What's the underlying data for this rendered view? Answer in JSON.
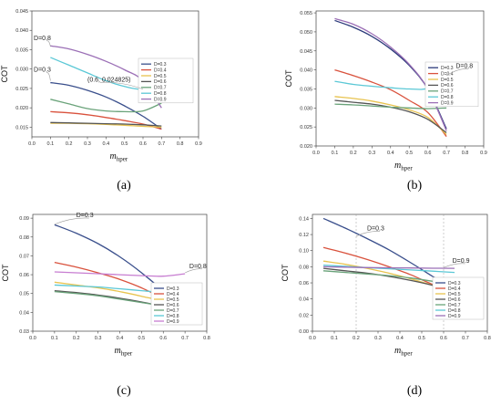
{
  "chart_data": [
    {
      "type": "line",
      "panel_label": "(a)",
      "xlabel": "m",
      "xlabel_sub": "hper",
      "ylabel": "COT",
      "xlim": [
        0.0,
        0.9
      ],
      "ylim": [
        0.0125,
        0.045
      ],
      "xticks": [
        "0.0",
        "0.1",
        "0.2",
        "0.3",
        "0.4",
        "0.5",
        "0.6",
        "0.7",
        "0.8",
        "0.9"
      ],
      "yticks": [
        {
          "v": 0.015,
          "t": "0.015"
        },
        {
          "v": 0.02,
          "t": "0.020"
        },
        {
          "v": 0.025,
          "t": "0.025"
        },
        {
          "v": 0.03,
          "t": "0.030"
        },
        {
          "v": 0.035,
          "t": "0.035"
        },
        {
          "v": 0.04,
          "t": "0.040"
        },
        {
          "v": 0.045,
          "t": "0.045"
        }
      ],
      "legend_position": "right-middle",
      "series": [
        {
          "name": "D=0.3",
          "color": "#3a4f8c",
          "x": [
            0.1,
            0.2,
            0.3,
            0.4,
            0.5,
            0.6,
            0.7
          ],
          "y": [
            0.0265,
            0.0258,
            0.0245,
            0.0228,
            0.0205,
            0.0178,
            0.0145
          ]
        },
        {
          "name": "D=0.4",
          "color": "#d9523d",
          "x": [
            0.1,
            0.2,
            0.3,
            0.4,
            0.5,
            0.6,
            0.7
          ],
          "y": [
            0.019,
            0.0187,
            0.0182,
            0.0175,
            0.0167,
            0.0158,
            0.0145
          ]
        },
        {
          "name": "D=0.5",
          "color": "#e8c34f",
          "x": [
            0.1,
            0.2,
            0.3,
            0.4,
            0.5,
            0.6,
            0.7
          ],
          "y": [
            0.016,
            0.016,
            0.0159,
            0.0157,
            0.0155,
            0.0152,
            0.015
          ]
        },
        {
          "name": "D=0.6",
          "color": "#555555",
          "x": [
            0.1,
            0.2,
            0.3,
            0.4,
            0.5,
            0.6,
            0.7
          ],
          "y": [
            0.0162,
            0.0161,
            0.016,
            0.0159,
            0.0158,
            0.0156,
            0.0153
          ]
        },
        {
          "name": "D=0.7",
          "color": "#6aa37a",
          "x": [
            0.1,
            0.2,
            0.3,
            0.4,
            0.5,
            0.6,
            0.7
          ],
          "y": [
            0.0222,
            0.021,
            0.0198,
            0.0192,
            0.019,
            0.0192,
            0.0212
          ]
        },
        {
          "name": "D=0.8",
          "color": "#5bc8d6",
          "x": [
            0.1,
            0.2,
            0.3,
            0.4,
            0.5,
            0.6,
            0.7
          ],
          "y": [
            0.033,
            0.031,
            0.029,
            0.027,
            0.0255,
            0.0248,
            0.0265
          ]
        },
        {
          "name": "D=0.9",
          "color": "#9b6fb6",
          "x": [
            0.1,
            0.2,
            0.3,
            0.4,
            0.5,
            0.6,
            0.7
          ],
          "y": [
            0.036,
            0.0352,
            0.0338,
            0.032,
            0.0298,
            0.027,
            0.02
          ]
        }
      ],
      "annotations": [
        {
          "text": "D=0.8",
          "x": 0.01,
          "y": 0.0375,
          "to_x": 0.1,
          "to_y": 0.0358
        },
        {
          "text": "D=0.3",
          "x": 0.01,
          "y": 0.0293,
          "to_x": 0.1,
          "to_y": 0.027
        },
        {
          "text": "(0.6, 0.024825)",
          "x": 0.3,
          "y": 0.0268,
          "to_x": 0.6,
          "to_y": 0.0248
        }
      ]
    },
    {
      "type": "line",
      "panel_label": "(b)",
      "xlabel": "m",
      "xlabel_sub": "hper",
      "ylabel": "COT",
      "xlim": [
        0.0,
        0.9
      ],
      "ylim": [
        0.02,
        0.0555
      ],
      "xticks": [
        "0.0",
        "0.1",
        "0.2",
        "0.3",
        "0.4",
        "0.5",
        "0.6",
        "0.7",
        "0.8",
        "0.9"
      ],
      "yticks": [
        {
          "v": 0.02,
          "t": "0.020"
        },
        {
          "v": 0.025,
          "t": "0.025"
        },
        {
          "v": 0.03,
          "t": "0.030"
        },
        {
          "v": 0.035,
          "t": "0.035"
        },
        {
          "v": 0.04,
          "t": "0.040"
        },
        {
          "v": 0.045,
          "t": "0.045"
        },
        {
          "v": 0.05,
          "t": "0.050"
        },
        {
          "v": 0.055,
          "t": "0.055"
        }
      ],
      "legend_position": "right-middle",
      "series": [
        {
          "name": "D=0.3",
          "color": "#2b3a7a",
          "x": [
            0.1,
            0.2,
            0.3,
            0.4,
            0.5,
            0.6,
            0.7
          ],
          "y": [
            0.053,
            0.0512,
            0.0488,
            0.0455,
            0.0412,
            0.035,
            0.0245
          ]
        },
        {
          "name": "D=0.4",
          "color": "#d9523d",
          "x": [
            0.1,
            0.2,
            0.3,
            0.4,
            0.5,
            0.6,
            0.7
          ],
          "y": [
            0.04,
            0.0385,
            0.0368,
            0.0348,
            0.032,
            0.0288,
            0.0225
          ]
        },
        {
          "name": "D=0.5",
          "color": "#e8c34f",
          "x": [
            0.1,
            0.2,
            0.3,
            0.4,
            0.5,
            0.6,
            0.7
          ],
          "y": [
            0.033,
            0.0325,
            0.0318,
            0.0308,
            0.0295,
            0.0275,
            0.023
          ]
        },
        {
          "name": "D=0.6",
          "color": "#555555",
          "x": [
            0.1,
            0.2,
            0.3,
            0.4,
            0.5,
            0.6,
            0.7
          ],
          "y": [
            0.032,
            0.0315,
            0.031,
            0.0302,
            0.029,
            0.027,
            0.0235
          ]
        },
        {
          "name": "D=0.7",
          "color": "#6aa37a",
          "x": [
            0.1,
            0.2,
            0.3,
            0.4,
            0.5,
            0.6,
            0.7
          ],
          "y": [
            0.031,
            0.0308,
            0.0305,
            0.0302,
            0.03,
            0.0298,
            0.03
          ]
        },
        {
          "name": "D=0.8",
          "color": "#5bc8d6",
          "x": [
            0.1,
            0.2,
            0.3,
            0.4,
            0.5,
            0.6,
            0.7
          ],
          "y": [
            0.037,
            0.0362,
            0.0357,
            0.0353,
            0.035,
            0.0352,
            0.0385
          ]
        },
        {
          "name": "D=0.9",
          "color": "#9b6fb6",
          "x": [
            0.1,
            0.2,
            0.3,
            0.4,
            0.5,
            0.6,
            0.7
          ],
          "y": [
            0.0535,
            0.052,
            0.0495,
            0.046,
            0.0415,
            0.035,
            0.024
          ]
        }
      ],
      "annotations": [
        {
          "text": "D=0.8",
          "x": 0.75,
          "y": 0.0405,
          "to_x": 0.7,
          "to_y": 0.0385
        }
      ]
    },
    {
      "type": "line",
      "panel_label": "(c)",
      "xlabel": "m",
      "xlabel_sub": "hper",
      "ylabel": "COT",
      "xlim": [
        0.0,
        0.8
      ],
      "ylim": [
        0.03,
        0.092
      ],
      "xticks": [
        "0.0",
        "0.1",
        "0.2",
        "0.3",
        "0.4",
        "0.5",
        "0.6",
        "0.7",
        "0.8"
      ],
      "yticks": [
        {
          "v": 0.03,
          "t": "0.03"
        },
        {
          "v": 0.04,
          "t": "0.04"
        },
        {
          "v": 0.05,
          "t": "0.05"
        },
        {
          "v": 0.06,
          "t": "0.06"
        },
        {
          "v": 0.07,
          "t": "0.07"
        },
        {
          "v": 0.08,
          "t": "0.08"
        },
        {
          "v": 0.09,
          "t": "0.09"
        }
      ],
      "legend_position": "bottom-right",
      "series": [
        {
          "name": "D=0.3",
          "color": "#3a4f8c",
          "x": [
            0.1,
            0.2,
            0.3,
            0.4,
            0.5,
            0.6,
            0.7
          ],
          "y": [
            0.0865,
            0.082,
            0.0765,
            0.0695,
            0.061,
            0.051,
            0.037
          ]
        },
        {
          "name": "D=0.4",
          "color": "#d9523d",
          "x": [
            0.1,
            0.2,
            0.3,
            0.4,
            0.5,
            0.6,
            0.7
          ],
          "y": [
            0.0665,
            0.064,
            0.061,
            0.0575,
            0.053,
            0.047,
            0.038
          ]
        },
        {
          "name": "D=0.5",
          "color": "#e8c34f",
          "x": [
            0.1,
            0.2,
            0.3,
            0.4,
            0.5,
            0.6,
            0.7
          ],
          "y": [
            0.056,
            0.0545,
            0.053,
            0.051,
            0.0485,
            0.045,
            0.034
          ]
        },
        {
          "name": "D=0.6",
          "color": "#555555",
          "x": [
            0.1,
            0.2,
            0.3,
            0.4,
            0.5,
            0.6,
            0.7
          ],
          "y": [
            0.0515,
            0.0505,
            0.0492,
            0.0475,
            0.0455,
            0.043,
            0.039
          ]
        },
        {
          "name": "D=0.7",
          "color": "#6aa37a",
          "x": [
            0.1,
            0.2,
            0.3,
            0.4,
            0.5,
            0.6,
            0.7
          ],
          "y": [
            0.051,
            0.05,
            0.0488,
            0.047,
            0.0452,
            0.0435,
            0.0425
          ]
        },
        {
          "name": "D=0.8",
          "color": "#5bc8d6",
          "x": [
            0.1,
            0.2,
            0.3,
            0.4,
            0.5,
            0.6,
            0.7
          ],
          "y": [
            0.0545,
            0.054,
            0.0535,
            0.0525,
            0.0515,
            0.0505,
            0.05
          ]
        },
        {
          "name": "D=0.9",
          "color": "#c77dd1",
          "x": [
            0.1,
            0.2,
            0.3,
            0.4,
            0.5,
            0.6,
            0.7
          ],
          "y": [
            0.0615,
            0.061,
            0.0605,
            0.06,
            0.0595,
            0.0592,
            0.0605
          ]
        }
      ],
      "annotations": [
        {
          "text": "D=0.3",
          "x": 0.2,
          "y": 0.0905,
          "to_x": 0.1,
          "to_y": 0.0868
        },
        {
          "text": "D=0.8",
          "x": 0.72,
          "y": 0.0635,
          "to_x": 0.7,
          "to_y": 0.061
        }
      ]
    },
    {
      "type": "line",
      "panel_label": "(d)",
      "xlabel": "m",
      "xlabel_sub": "hper",
      "ylabel": "COT",
      "xlim": [
        0.0,
        0.8
      ],
      "ylim": [
        0.0,
        0.145
      ],
      "xticks": [
        "0.0",
        "0.1",
        "0.2",
        "0.3",
        "0.4",
        "0.5",
        "0.6",
        "0.7",
        "0.8"
      ],
      "yticks": [
        {
          "v": 0.0,
          "t": "0.00"
        },
        {
          "v": 0.02,
          "t": "0.02"
        },
        {
          "v": 0.04,
          "t": "0.04"
        },
        {
          "v": 0.06,
          "t": "0.06"
        },
        {
          "v": 0.08,
          "t": "0.08"
        },
        {
          "v": 0.1,
          "t": "0.10"
        },
        {
          "v": 0.12,
          "t": "0.12"
        },
        {
          "v": 0.14,
          "t": "0.14"
        }
      ],
      "legend_position": "bottom-right",
      "series": [
        {
          "name": "D=0.3",
          "color": "#3a4f8c",
          "x": [
            0.05,
            0.15,
            0.25,
            0.35,
            0.45,
            0.55,
            0.65
          ],
          "y": [
            0.14,
            0.128,
            0.115,
            0.101,
            0.085,
            0.068,
            0.052
          ]
        },
        {
          "name": "D=0.4",
          "color": "#d9523d",
          "x": [
            0.05,
            0.15,
            0.25,
            0.35,
            0.45,
            0.55,
            0.65
          ],
          "y": [
            0.104,
            0.097,
            0.089,
            0.08,
            0.07,
            0.058,
            0.048
          ]
        },
        {
          "name": "D=0.5",
          "color": "#e8c34f",
          "x": [
            0.05,
            0.15,
            0.25,
            0.35,
            0.45,
            0.55,
            0.65
          ],
          "y": [
            0.087,
            0.083,
            0.078,
            0.072,
            0.065,
            0.057,
            0.049
          ]
        },
        {
          "name": "D=0.6",
          "color": "#555555",
          "x": [
            0.05,
            0.15,
            0.25,
            0.35,
            0.45,
            0.55,
            0.65
          ],
          "y": [
            0.078,
            0.075,
            0.072,
            0.068,
            0.063,
            0.057,
            0.05
          ]
        },
        {
          "name": "D=0.7",
          "color": "#6aa37a",
          "x": [
            0.05,
            0.15,
            0.25,
            0.35,
            0.45,
            0.55,
            0.65
          ],
          "y": [
            0.075,
            0.073,
            0.071,
            0.069,
            0.066,
            0.062,
            0.058
          ]
        },
        {
          "name": "D=0.8",
          "color": "#5bc8d6",
          "x": [
            0.05,
            0.15,
            0.25,
            0.35,
            0.45,
            0.55,
            0.65
          ],
          "y": [
            0.082,
            0.0805,
            0.079,
            0.0775,
            0.076,
            0.0745,
            0.073
          ]
        },
        {
          "name": "D=0.9",
          "color": "#9b6fb6",
          "x": [
            0.05,
            0.15,
            0.25,
            0.35,
            0.45,
            0.55,
            0.65
          ],
          "y": [
            0.08,
            0.0795,
            0.079,
            0.0787,
            0.0785,
            0.0782,
            0.078
          ]
        }
      ],
      "vlines": [
        0.2,
        0.6
      ],
      "annotations": [
        {
          "text": "D=0.3",
          "x": 0.25,
          "y": 0.125,
          "to_x": 0.2,
          "to_y": 0.118
        },
        {
          "text": "D=0.9",
          "x": 0.64,
          "y": 0.085,
          "to_x": 0.6,
          "to_y": 0.079
        }
      ]
    }
  ]
}
